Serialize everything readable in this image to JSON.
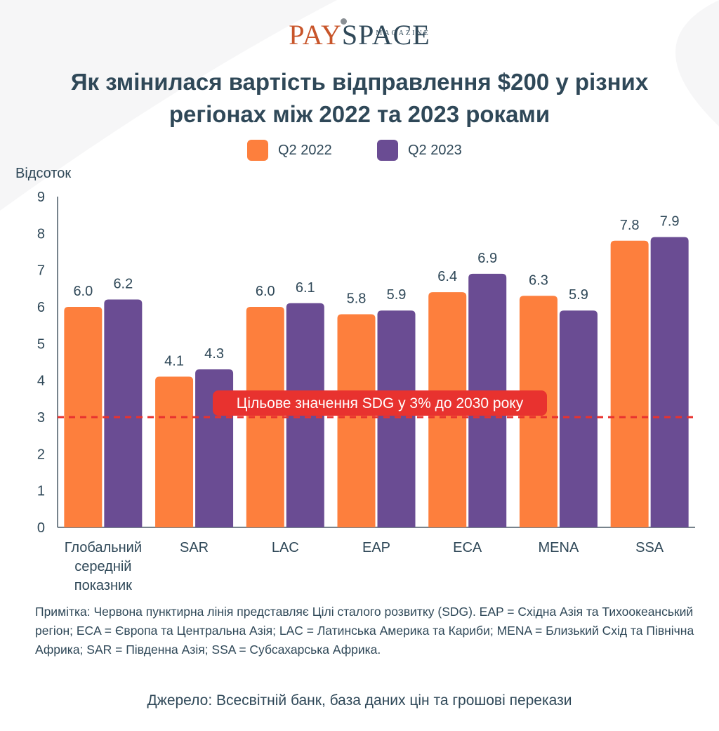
{
  "brand": {
    "pay": "PAY",
    "space": "SPACE",
    "magazine": "MAGAZINE"
  },
  "title": "Як змінилася вартість відправлення $200 у різних регіонах між 2022 та 2023 роками",
  "colors": {
    "q2_2022": "#fd7f3d",
    "q2_2023": "#6a4c93",
    "target_line": "#e8322f",
    "text": "#2f4858"
  },
  "chart_data": {
    "type": "bar",
    "ylabel": "Відсоток",
    "ylim": [
      0,
      9
    ],
    "yticks": [
      0,
      1,
      2,
      3,
      4,
      5,
      6,
      7,
      8,
      9
    ],
    "categories": [
      [
        "Глобальний",
        "середній",
        "показник"
      ],
      [
        "SAR"
      ],
      [
        "LAC"
      ],
      [
        "EAP"
      ],
      [
        "ECA"
      ],
      [
        "MENA"
      ],
      [
        "SSA"
      ]
    ],
    "series": [
      {
        "name": "Q2 2022",
        "values": [
          6.0,
          4.1,
          6.0,
          5.8,
          6.4,
          6.3,
          7.8
        ],
        "labels": [
          "6.0",
          "4.1",
          "6.0",
          "5.8",
          "6.4",
          "6.3",
          "7.8"
        ]
      },
      {
        "name": "Q2 2023",
        "values": [
          6.2,
          4.3,
          6.1,
          5.9,
          6.9,
          5.9,
          7.9
        ],
        "labels": [
          "6.2",
          "4.3",
          "6.1",
          "5.9",
          "6.9",
          "5.9",
          "7.9"
        ]
      }
    ],
    "target": {
      "value": 3,
      "label": "Цільове значення SDG у 3% до 2030 року"
    },
    "legend": "top-center",
    "grid": false
  },
  "note": "Примітка: Червона пунктирна лінія представляє Цілі сталого розвитку (SDG). EAP = Східна Азія та Тихоокеанський регіон; ECA = Європа та Центральна Азія; LAC = Латинська Америка та Кариби; MENA = Близький Схід та Північна Африка; SAR = Південна Азія; SSA = Субсахарська Африка.",
  "source": "Джерело: Всесвітній банк, база даних цін та грошові перекази"
}
